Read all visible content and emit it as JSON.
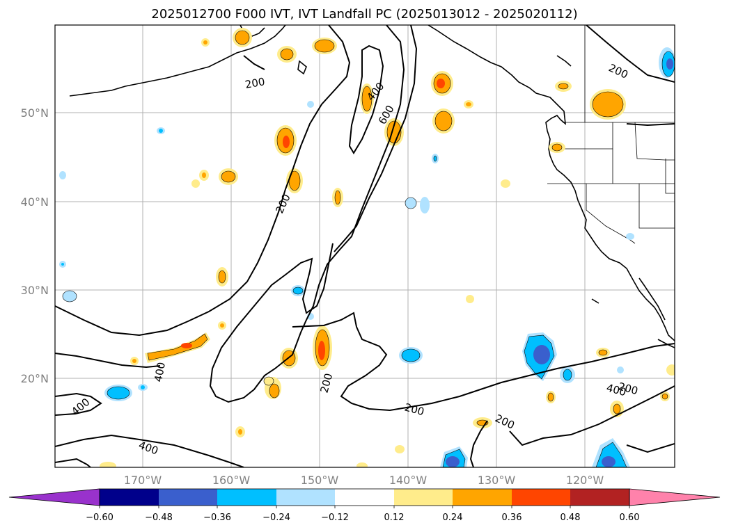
{
  "title": "2025012700 F000 IVT, IVT Landfall PC (2025013012 - 2025020112)",
  "lat_ticks": [
    "50°N",
    "40°N",
    "30°N",
    "20°N"
  ],
  "lon_ticks": [
    "170°W",
    "160°W",
    "150°W",
    "140°W",
    "130°W",
    "120°W"
  ],
  "ivt_contour_labels": [
    "200",
    "400",
    "600",
    "200",
    "200",
    "400",
    "400",
    "400",
    "200",
    "200",
    "400",
    "200",
    "200"
  ],
  "colorbar": {
    "ticks": [
      "−0.60",
      "−0.48",
      "−0.36",
      "−0.24",
      "−0.12",
      "0.12",
      "0.24",
      "0.36",
      "0.48",
      "0.60"
    ],
    "colors": [
      "#9932CC",
      "#00008B",
      "#3A5FCD",
      "#00BFFF",
      "#B0E2FF",
      "#FFFFFF",
      "#FFEC8B",
      "#FFA500",
      "#FF4500",
      "#B22222",
      "#FF82AB"
    ]
  }
}
